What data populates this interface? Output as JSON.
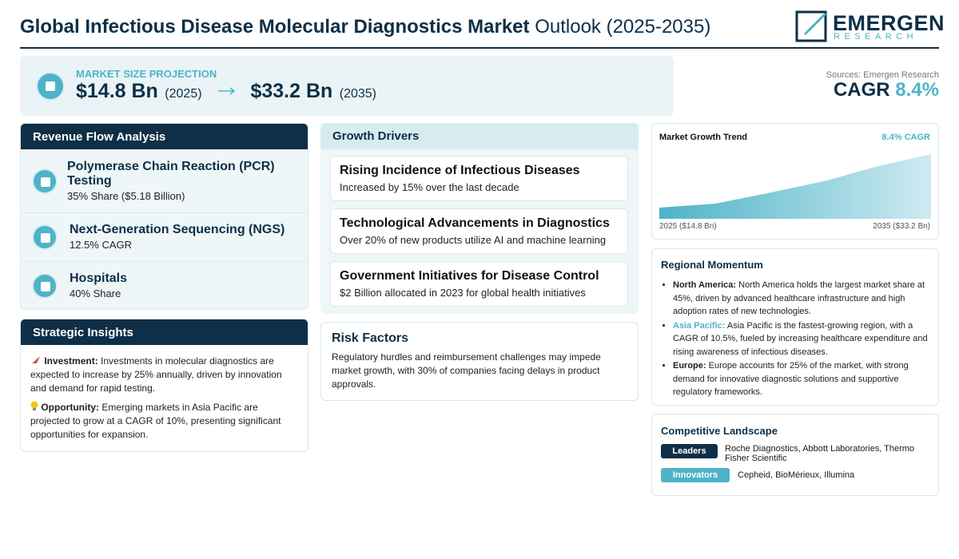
{
  "header": {
    "title_bold": "Global Infectious Disease Molecular Diagnostics Market",
    "title_rest": "Outlook (2025-2035)",
    "logo_main": "EMERGEN",
    "logo_sub": "RESEARCH"
  },
  "projection": {
    "label": "MARKET SIZE PROJECTION",
    "start_value": "$14.8 Bn",
    "start_year": "(2025)",
    "end_value": "$33.2 Bn",
    "end_year": "(2035)"
  },
  "summary": {
    "sources": "Sources: Emergen Research",
    "cagr_label": "CAGR",
    "cagr_value": "8.4%"
  },
  "revenue_flow": {
    "title": "Revenue Flow Analysis",
    "items": [
      {
        "title": "Polymerase Chain Reaction (PCR) Testing",
        "detail": "35% Share ($5.18 Billion)"
      },
      {
        "title": "Next-Generation Sequencing (NGS)",
        "detail": "12.5% CAGR"
      },
      {
        "title": "Hospitals",
        "detail": "40% Share"
      }
    ]
  },
  "strategic_insights": {
    "title": "Strategic Insights",
    "items": [
      {
        "label": "Investment:",
        "text": "Investments in molecular diagnostics are expected to increase by 25% annually, driven by innovation and demand for rapid testing."
      },
      {
        "label": "Opportunity:",
        "text": "Emerging markets in Asia Pacific are projected to grow at a CAGR of 10%, presenting significant opportunities for expansion."
      }
    ]
  },
  "growth_drivers": {
    "title": "Growth Drivers",
    "items": [
      {
        "title": "Rising Incidence of Infectious Diseases",
        "detail": "Increased by 15% over the last decade"
      },
      {
        "title": "Technological Advancements in Diagnostics",
        "detail": "Over 20% of new products utilize AI and machine learning"
      },
      {
        "title": "Government Initiatives for Disease Control",
        "detail": "$2 Billion allocated in 2023 for global health initiatives"
      }
    ]
  },
  "risk_factors": {
    "title": "Risk Factors",
    "text": "Regulatory hurdles and reimbursement challenges may impede market growth, with 30% of companies facing delays in product approvals."
  },
  "market_trend": {
    "title": "Market Growth Trend",
    "cagr_label": "8.4% CAGR",
    "start_label": "2025 ($14.8 Bn)",
    "end_label": "2035 ($33.2 Bn)"
  },
  "regional_momentum": {
    "title": "Regional Momentum",
    "items": [
      {
        "region": "North America:",
        "text": "North America holds the largest market share at 45%, driven by advanced healthcare infrastructure and high adoption rates of new technologies."
      },
      {
        "region": "Asia Pacific:",
        "text": "Asia Pacific is the fastest-growing region, with a CAGR of 10.5%, fueled by increasing healthcare expenditure and rising awareness of infectious diseases."
      },
      {
        "region": "Europe:",
        "text": "Europe accounts for 25% of the market, with strong demand for innovative diagnostic solutions and supportive regulatory frameworks."
      }
    ]
  },
  "competitive_landscape": {
    "title": "Competitive Landscape",
    "rows": [
      {
        "badge": "Leaders",
        "companies": "Roche Diagnostics, Abbott Laboratories, Thermo Fisher Scientific"
      },
      {
        "badge": "Innovators",
        "companies": "Cepheid, BioMérieux, Illumina"
      }
    ]
  }
}
